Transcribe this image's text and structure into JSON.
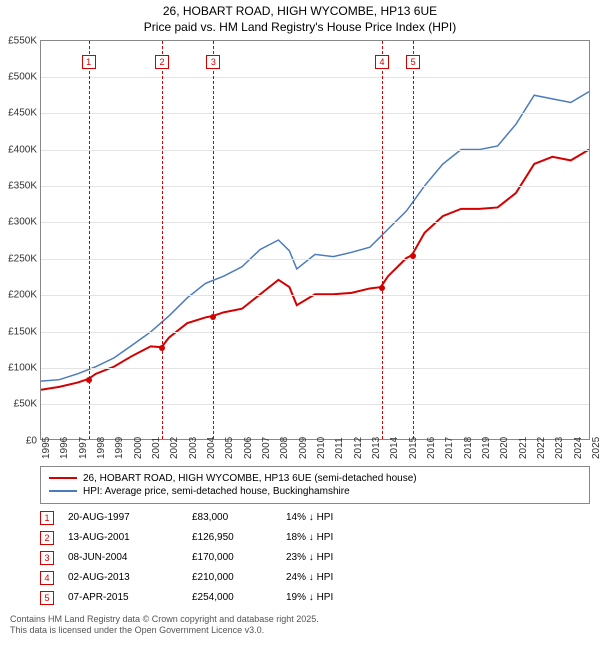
{
  "title_line1": "26, HOBART ROAD, HIGH WYCOMBE, HP13 6UE",
  "title_line2": "Price paid vs. HM Land Registry's House Price Index (HPI)",
  "chart": {
    "type": "line",
    "ylim": [
      0,
      550000
    ],
    "ytick_step": 50000,
    "ytick_labels": [
      "£0",
      "£50K",
      "£100K",
      "£150K",
      "£200K",
      "£250K",
      "£300K",
      "£350K",
      "£400K",
      "£450K",
      "£500K",
      "£550K"
    ],
    "xlim": [
      1995,
      2025
    ],
    "xticks": [
      1995,
      1996,
      1997,
      1998,
      1999,
      2000,
      2001,
      2002,
      2003,
      2004,
      2005,
      2006,
      2007,
      2008,
      2009,
      2010,
      2011,
      2012,
      2013,
      2014,
      2015,
      2016,
      2017,
      2018,
      2019,
      2020,
      2021,
      2022,
      2023,
      2024,
      2025
    ],
    "grid_color": "#e4e4e4",
    "background_color": "#ffffff",
    "series": [
      {
        "label": "26, HOBART ROAD, HIGH WYCOMBE, HP13 6UE (semi-detached house)",
        "color": "#d40000",
        "line_width": 2,
        "points": [
          [
            1995,
            68000
          ],
          [
            1996,
            72000
          ],
          [
            1997,
            78000
          ],
          [
            1997.6,
            83000
          ],
          [
            1998,
            90000
          ],
          [
            1999,
            100000
          ],
          [
            2000,
            115000
          ],
          [
            2001,
            128000
          ],
          [
            2001.6,
            126950
          ],
          [
            2002,
            140000
          ],
          [
            2003,
            160000
          ],
          [
            2004,
            168000
          ],
          [
            2004.4,
            170000
          ],
          [
            2005,
            175000
          ],
          [
            2006,
            180000
          ],
          [
            2007,
            200000
          ],
          [
            2008,
            220000
          ],
          [
            2008.6,
            210000
          ],
          [
            2009,
            185000
          ],
          [
            2010,
            200000
          ],
          [
            2011,
            200000
          ],
          [
            2012,
            202000
          ],
          [
            2013,
            208000
          ],
          [
            2013.6,
            210000
          ],
          [
            2014,
            225000
          ],
          [
            2015,
            250000
          ],
          [
            2015.3,
            254000
          ],
          [
            2016,
            285000
          ],
          [
            2017,
            308000
          ],
          [
            2018,
            318000
          ],
          [
            2019,
            318000
          ],
          [
            2020,
            320000
          ],
          [
            2021,
            340000
          ],
          [
            2022,
            380000
          ],
          [
            2023,
            390000
          ],
          [
            2024,
            385000
          ],
          [
            2025,
            400000
          ]
        ]
      },
      {
        "label": "HPI: Average price, semi-detached house, Buckinghamshire",
        "color": "#4a7bbf",
        "line_width": 1.5,
        "points": [
          [
            1995,
            80000
          ],
          [
            1996,
            82000
          ],
          [
            1997,
            90000
          ],
          [
            1998,
            100000
          ],
          [
            1999,
            112000
          ],
          [
            2000,
            130000
          ],
          [
            2001,
            148000
          ],
          [
            2002,
            170000
          ],
          [
            2003,
            195000
          ],
          [
            2004,
            215000
          ],
          [
            2005,
            225000
          ],
          [
            2006,
            238000
          ],
          [
            2007,
            262000
          ],
          [
            2008,
            275000
          ],
          [
            2008.6,
            260000
          ],
          [
            2009,
            235000
          ],
          [
            2010,
            255000
          ],
          [
            2011,
            252000
          ],
          [
            2012,
            258000
          ],
          [
            2013,
            265000
          ],
          [
            2014,
            290000
          ],
          [
            2015,
            315000
          ],
          [
            2016,
            350000
          ],
          [
            2017,
            380000
          ],
          [
            2018,
            400000
          ],
          [
            2019,
            400000
          ],
          [
            2020,
            405000
          ],
          [
            2021,
            435000
          ],
          [
            2022,
            475000
          ],
          [
            2023,
            470000
          ],
          [
            2024,
            465000
          ],
          [
            2025,
            480000
          ]
        ]
      }
    ],
    "sales_markers": [
      {
        "n": "1",
        "year": 1997.6,
        "price": 83000,
        "color": "#d40000"
      },
      {
        "n": "2",
        "year": 2001.6,
        "price": 126950,
        "color": "#d40000"
      },
      {
        "n": "3",
        "year": 2004.4,
        "price": 170000,
        "color": "#d40000"
      },
      {
        "n": "4",
        "year": 2013.6,
        "price": 210000,
        "color": "#d40000"
      },
      {
        "n": "5",
        "year": 2015.3,
        "price": 254000,
        "color": "#d40000"
      }
    ]
  },
  "legend": [
    {
      "color": "#d40000",
      "label": "26, HOBART ROAD, HIGH WYCOMBE, HP13 6UE (semi-detached house)"
    },
    {
      "color": "#4a7bbf",
      "label": "HPI: Average price, semi-detached house, Buckinghamshire"
    }
  ],
  "sales_table": [
    {
      "n": "1",
      "color": "#d40000",
      "date": "20-AUG-1997",
      "price": "£83,000",
      "diff": "14% ↓ HPI"
    },
    {
      "n": "2",
      "color": "#d40000",
      "date": "13-AUG-2001",
      "price": "£126,950",
      "diff": "18% ↓ HPI"
    },
    {
      "n": "3",
      "color": "#d40000",
      "date": "08-JUN-2004",
      "price": "£170,000",
      "diff": "23% ↓ HPI"
    },
    {
      "n": "4",
      "color": "#d40000",
      "date": "02-AUG-2013",
      "price": "£210,000",
      "diff": "24% ↓ HPI"
    },
    {
      "n": "5",
      "color": "#d40000",
      "date": "07-APR-2015",
      "price": "£254,000",
      "diff": "19% ↓ HPI"
    }
  ],
  "footer_line1": "Contains HM Land Registry data © Crown copyright and database right 2025.",
  "footer_line2": "This data is licensed under the Open Government Licence v3.0."
}
